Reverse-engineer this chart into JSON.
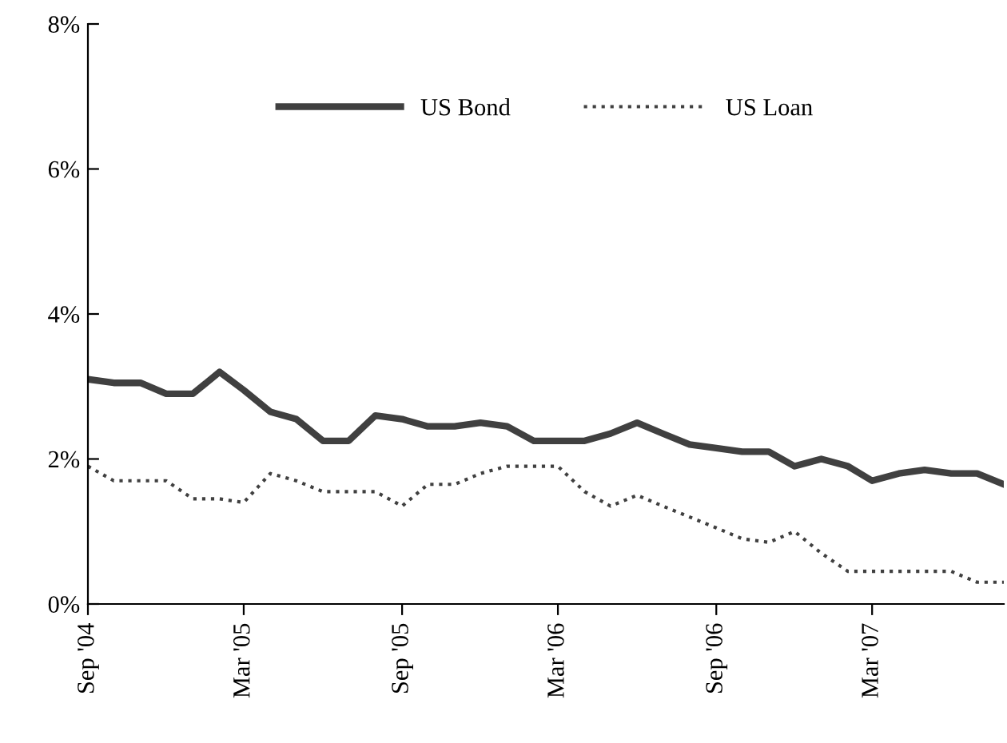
{
  "chart_data": {
    "type": "line",
    "x": [
      "2004-09",
      "2004-10",
      "2004-11",
      "2004-12",
      "2005-01",
      "2005-02",
      "2005-03",
      "2005-04",
      "2005-05",
      "2005-06",
      "2005-07",
      "2005-08",
      "2005-09",
      "2005-10",
      "2005-11",
      "2005-12",
      "2006-01",
      "2006-02",
      "2006-03",
      "2006-04",
      "2006-05",
      "2006-06",
      "2006-07",
      "2006-08",
      "2006-09",
      "2006-10",
      "2006-11",
      "2006-12",
      "2007-01",
      "2007-02",
      "2007-03",
      "2007-04",
      "2007-05",
      "2007-06",
      "2007-07",
      "2007-08"
    ],
    "series": [
      {
        "name": "US Bond",
        "color": "#404040",
        "line_style": "solid",
        "values": [
          3.1,
          3.05,
          3.05,
          2.9,
          2.9,
          3.2,
          2.95,
          2.65,
          2.55,
          2.25,
          2.25,
          2.6,
          2.55,
          2.45,
          2.45,
          2.5,
          2.45,
          2.25,
          2.25,
          2.25,
          2.35,
          2.5,
          2.35,
          2.2,
          2.15,
          2.1,
          2.1,
          1.9,
          2.0,
          1.9,
          1.7,
          1.8,
          1.85,
          1.8,
          1.8,
          1.65
        ]
      },
      {
        "name": "US Loan",
        "color": "#404040",
        "line_style": "dotted",
        "values": [
          1.9,
          1.7,
          1.7,
          1.7,
          1.45,
          1.45,
          1.4,
          1.8,
          1.7,
          1.55,
          1.55,
          1.55,
          1.35,
          1.65,
          1.65,
          1.8,
          1.9,
          1.9,
          1.9,
          1.55,
          1.35,
          1.5,
          1.35,
          1.2,
          1.05,
          0.9,
          0.85,
          1.0,
          0.7,
          0.45,
          0.45,
          0.45,
          0.45,
          0.45,
          0.3,
          0.3
        ]
      }
    ],
    "xlim": [
      "2004-09",
      "2007-08"
    ],
    "xticks": [
      {
        "value": "2004-09",
        "label": "Sep '04"
      },
      {
        "value": "2005-03",
        "label": "Mar '05"
      },
      {
        "value": "2005-09",
        "label": "Sep '05"
      },
      {
        "value": "2006-03",
        "label": "Mar '06"
      },
      {
        "value": "2006-09",
        "label": "Sep '06"
      },
      {
        "value": "2007-03",
        "label": "Mar '07"
      }
    ],
    "ylim": [
      0,
      8
    ],
    "yticks": [
      {
        "value": 0,
        "label": "0%"
      },
      {
        "value": 2,
        "label": "2%"
      },
      {
        "value": 4,
        "label": "4%"
      },
      {
        "value": 6,
        "label": "6%"
      },
      {
        "value": 8,
        "label": "8%"
      }
    ],
    "grid": false,
    "legend": "top",
    "marker": "none"
  }
}
